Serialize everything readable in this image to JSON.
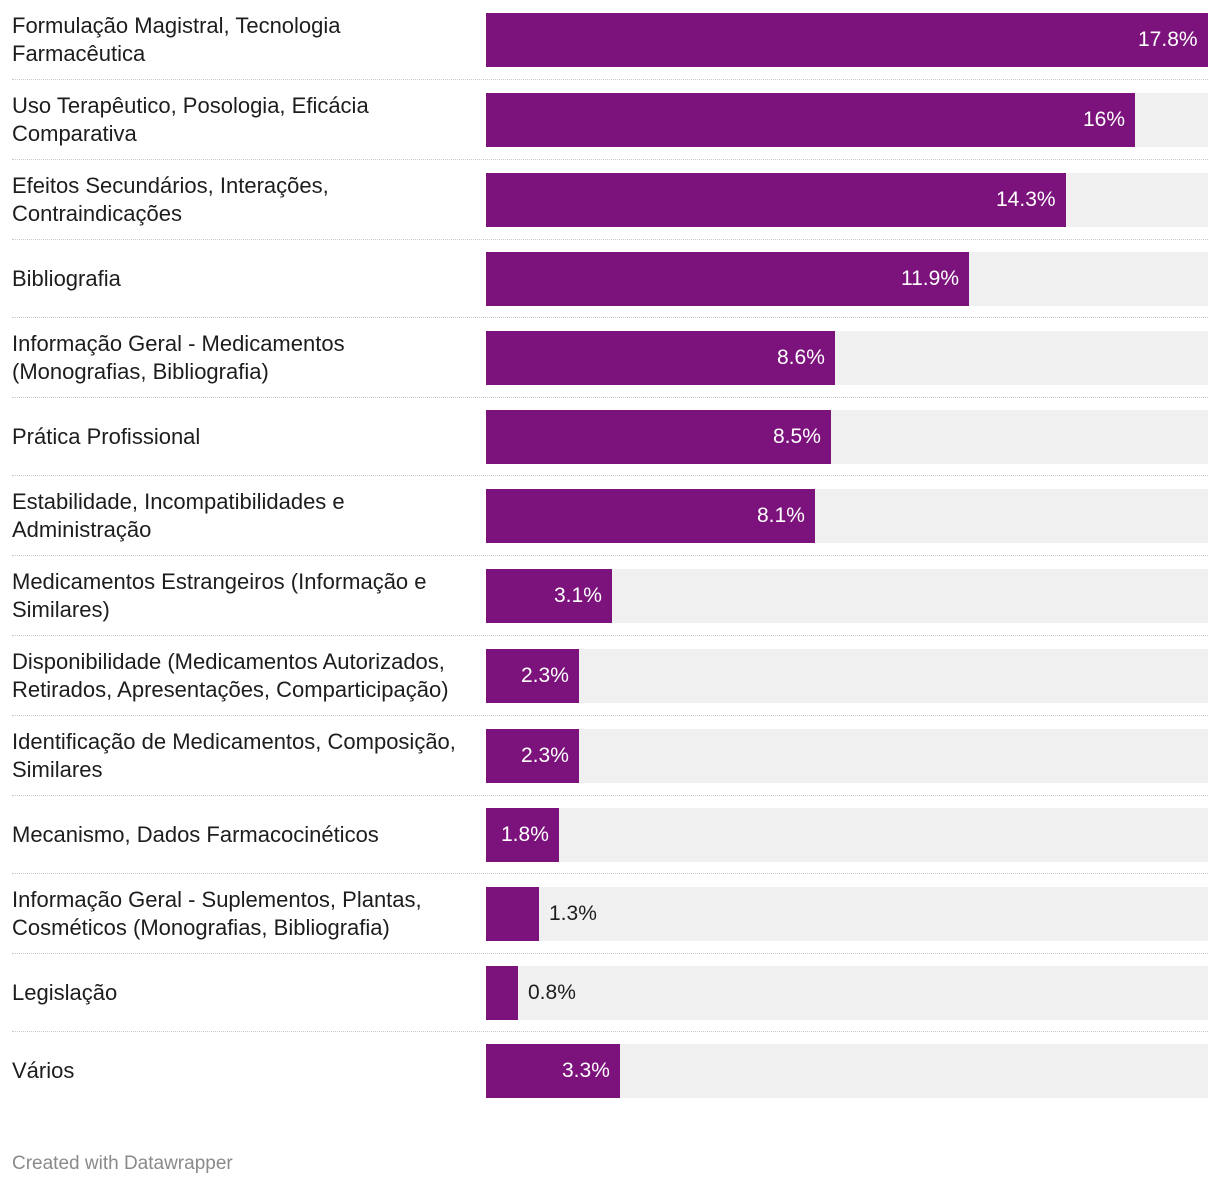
{
  "chart_data": {
    "type": "bar",
    "orientation": "horizontal",
    "title": "",
    "xlabel": "",
    "ylabel": "",
    "xlim": [
      0,
      17.8
    ],
    "grid": false,
    "bar_color": "#7c137c",
    "track_color": "#f0f0f0",
    "categories": [
      "Formulação Magistral, Tecnologia Farmacêutica",
      "Uso Terapêutico, Posologia, Eficácia Comparativa",
      "Efeitos Secundários, Interações, Contraindicações",
      "Bibliografia",
      "Informação Geral - Medicamentos (Monografias, Bibliografia)",
      "Prática Profissional",
      "Estabilidade, Incompatibilidades e Administração",
      "Medicamentos Estrangeiros (Informação e Similares)",
      "Disponibilidade (Medicamentos Autorizados, Retirados, Apresentações, Comparticipação)",
      "Identificação de Medicamentos, Composição, Similares",
      "Mecanismo, Dados Farmacocinéticos",
      "Informação Geral - Suplementos, Plantas, Cosméticos (Monografias, Bibliografia)",
      "Legislação",
      "Vários"
    ],
    "values": [
      17.8,
      16,
      14.3,
      11.9,
      8.6,
      8.5,
      8.1,
      3.1,
      2.3,
      2.3,
      1.8,
      1.3,
      0.8,
      3.3
    ],
    "value_labels": [
      "17.8%",
      "16%",
      "14.3%",
      "11.9%",
      "8.6%",
      "8.5%",
      "8.1%",
      "3.1%",
      "2.3%",
      "2.3%",
      "1.8%",
      "1.3%",
      "0.8%",
      "3.3%"
    ]
  },
  "footer": {
    "credit": "Created with Datawrapper"
  }
}
